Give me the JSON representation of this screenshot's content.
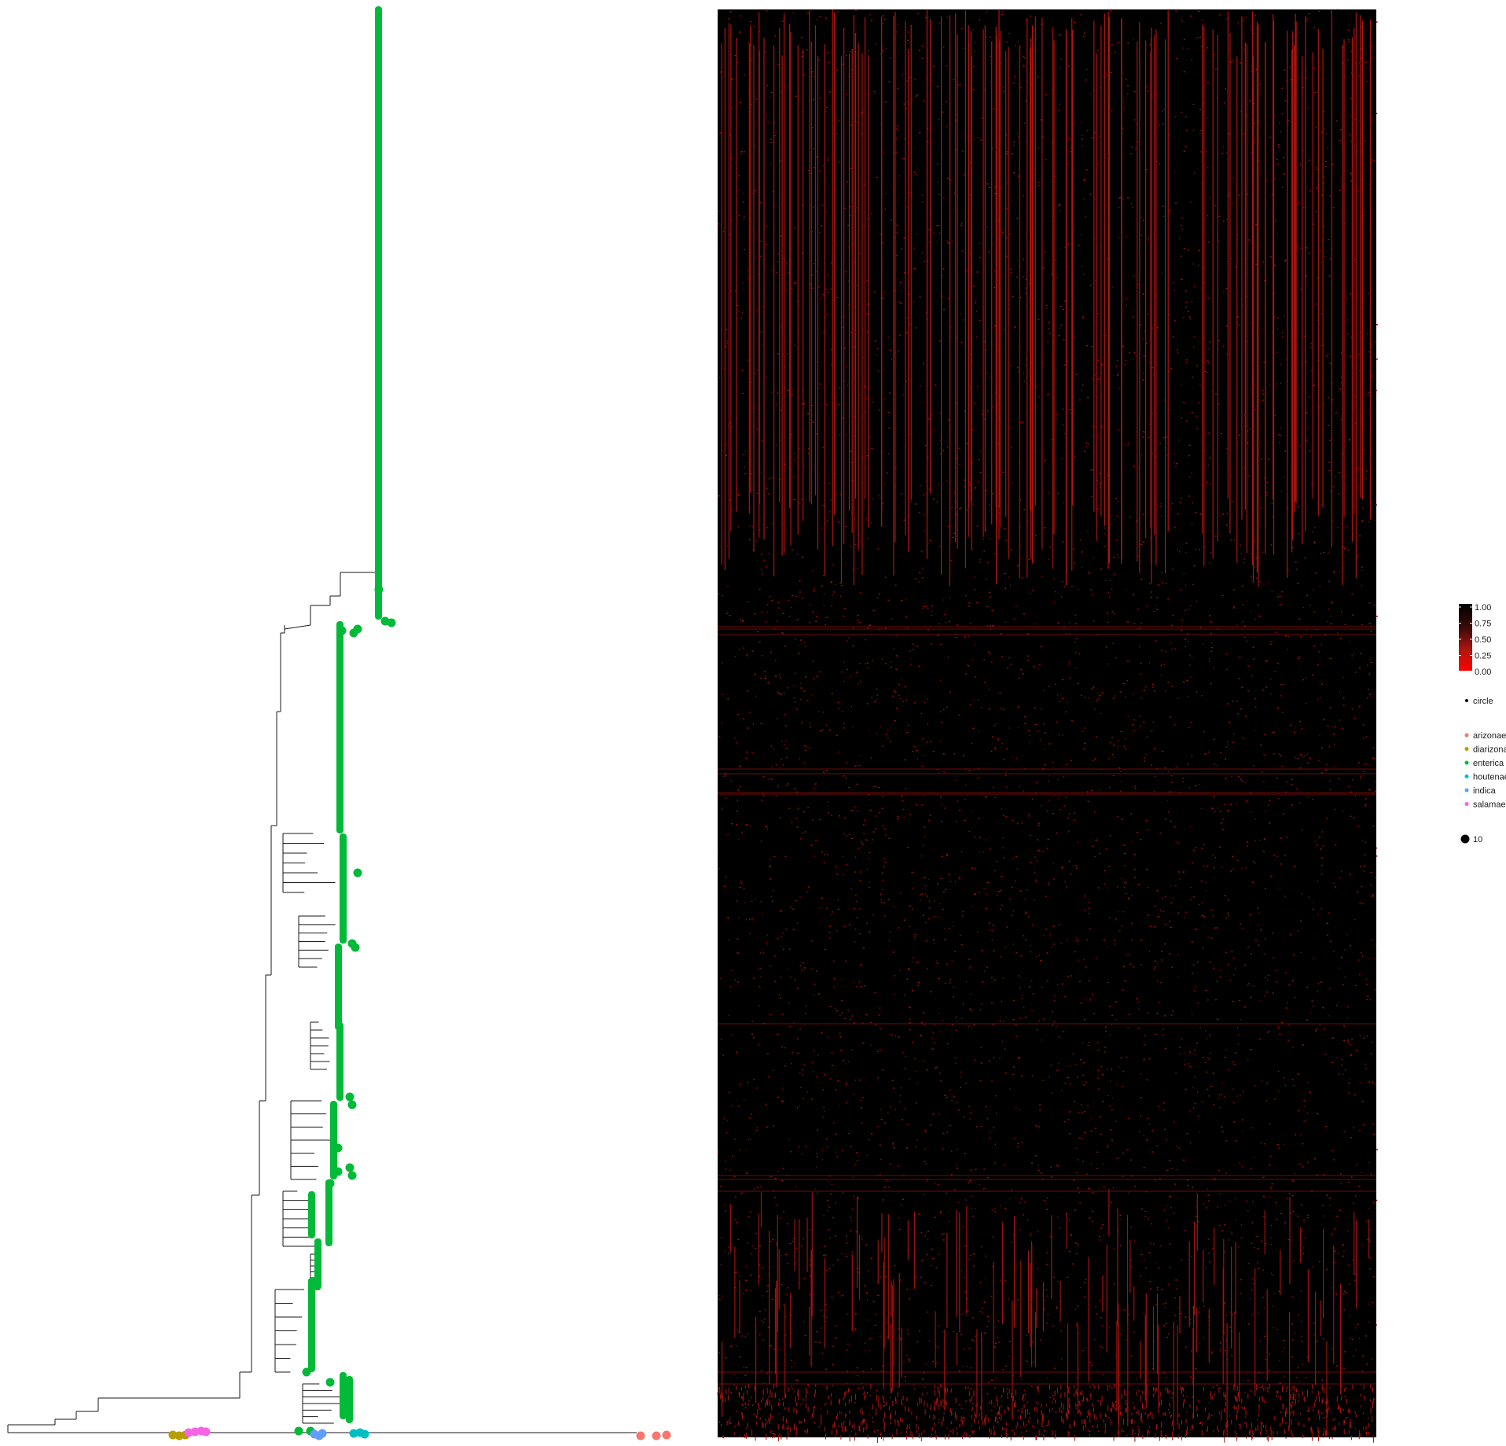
{
  "chart_data": [
    {
      "type": "tree",
      "description_source": "phylogenetic tree with tip points colored by subspecies",
      "tip_groups": [
        {
          "label": "arizonae",
          "color": "#F8766D"
        },
        {
          "label": "diarizonae",
          "color": "#B79F00"
        },
        {
          "label": "enterica",
          "color": "#00BA38"
        },
        {
          "label": "houtenae",
          "color": "#00BFC4"
        },
        {
          "label": "indica",
          "color": "#619CFF"
        },
        {
          "label": "salamae",
          "color": "#F564E3"
        }
      ]
    },
    {
      "type": "heatmap",
      "value_range": [
        0,
        1
      ],
      "colorbar": {
        "ticks": [
          "1.00",
          "0.75",
          "0.50",
          "0.25",
          "0.00"
        ],
        "low_color": "#FF0000",
        "high_color": "#000000"
      }
    }
  ],
  "legend": {
    "shape_label": "circle",
    "size_label": "10",
    "groups": [
      {
        "label": "arizonae",
        "color": "#F8766D"
      },
      {
        "label": "diarizonae",
        "color": "#B79F00"
      },
      {
        "label": "enterica",
        "color": "#00BA38"
      },
      {
        "label": "houtenae",
        "color": "#00BFC4"
      },
      {
        "label": "indica",
        "color": "#619CFF"
      },
      {
        "label": "salamae",
        "color": "#F564E3"
      }
    ]
  }
}
